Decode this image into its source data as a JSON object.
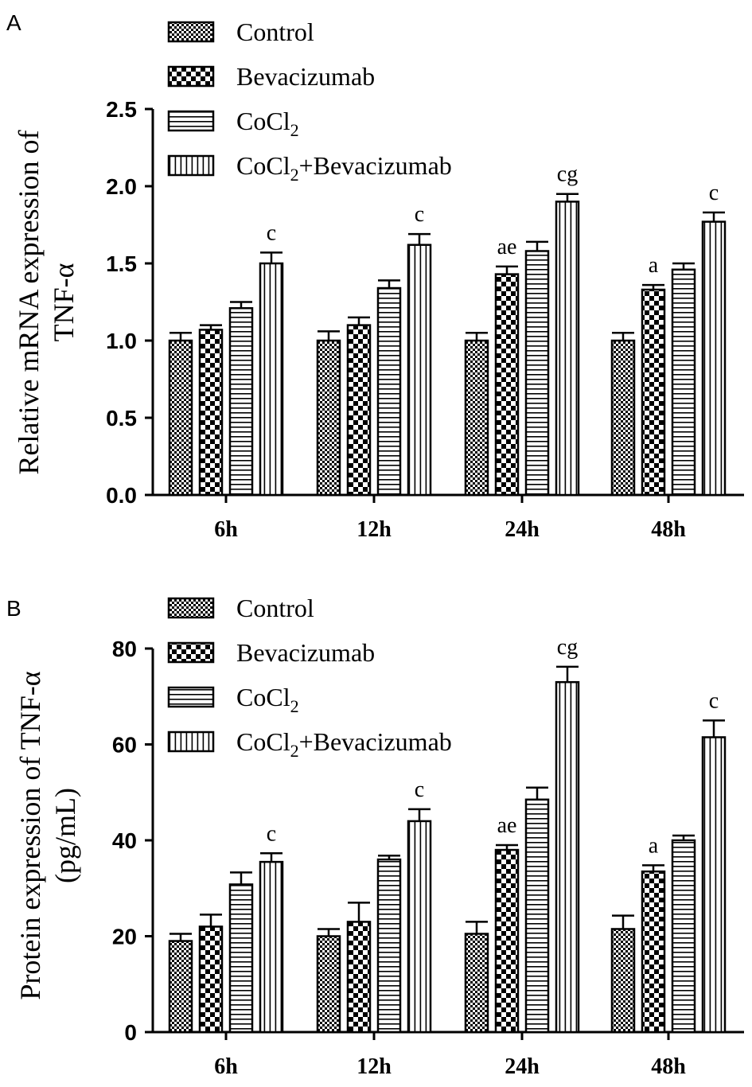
{
  "colors": {
    "ink": "#000000",
    "background": "#ffffff"
  },
  "chart_data": [
    {
      "type": "bar",
      "panel_label": "A",
      "title": "",
      "xlabel": "",
      "ylabel_line1": "Relative mRNA expression of",
      "ylabel_line2": "TNF-α",
      "categories": [
        "6h",
        "12h",
        "24h",
        "48h"
      ],
      "ylim": [
        0,
        2.5
      ],
      "yticks": [
        "0.0",
        "0.5",
        "1.0",
        "1.5",
        "2.0",
        "2.5"
      ],
      "grid": false,
      "legend_position": "top-left",
      "series": [
        {
          "name": "Control",
          "sub": "",
          "tail": "",
          "pattern": "fine-check",
          "values": [
            1.0,
            1.0,
            1.0,
            1.0
          ],
          "errors": [
            0.05,
            0.06,
            0.05,
            0.05
          ],
          "annotations": [
            "",
            "",
            "",
            ""
          ]
        },
        {
          "name": "Bevacizumab",
          "sub": "",
          "tail": "",
          "pattern": "check",
          "values": [
            1.07,
            1.1,
            1.43,
            1.33
          ],
          "errors": [
            0.03,
            0.05,
            0.05,
            0.03
          ],
          "annotations": [
            "",
            "",
            "ae",
            "a"
          ]
        },
        {
          "name": "CoCl",
          "sub": "2",
          "tail": "",
          "pattern": "horizontal",
          "values": [
            1.21,
            1.34,
            1.58,
            1.46
          ],
          "errors": [
            0.04,
            0.05,
            0.06,
            0.04
          ],
          "annotations": [
            "",
            "",
            "",
            ""
          ]
        },
        {
          "name": "CoCl",
          "sub": "2",
          "tail": "+Bevacizumab",
          "pattern": "vertical",
          "values": [
            1.5,
            1.62,
            1.9,
            1.77
          ],
          "errors": [
            0.07,
            0.07,
            0.05,
            0.06
          ],
          "annotations": [
            "c",
            "c",
            "cg",
            "c"
          ]
        }
      ]
    },
    {
      "type": "bar",
      "panel_label": "B",
      "title": "",
      "xlabel": "",
      "ylabel_line1": "Protein expression of TNF-α",
      "ylabel_line2": "(pg/mL)",
      "categories": [
        "6h",
        "12h",
        "24h",
        "48h"
      ],
      "ylim": [
        0,
        80
      ],
      "yticks": [
        "0",
        "20",
        "40",
        "60",
        "80"
      ],
      "grid": false,
      "legend_position": "top-left",
      "series": [
        {
          "name": "Control",
          "sub": "",
          "tail": "",
          "pattern": "fine-check",
          "values": [
            19,
            20,
            20.5,
            21.5
          ],
          "errors": [
            1.5,
            1.5,
            2.5,
            2.8
          ],
          "annotations": [
            "",
            "",
            "",
            ""
          ]
        },
        {
          "name": "Bevacizumab",
          "sub": "",
          "tail": "",
          "pattern": "check",
          "values": [
            22,
            23,
            38,
            33.5
          ],
          "errors": [
            2.5,
            4.0,
            1.0,
            1.3
          ],
          "annotations": [
            "",
            "",
            "ae",
            "a"
          ]
        },
        {
          "name": "CoCl",
          "sub": "2",
          "tail": "",
          "pattern": "horizontal",
          "values": [
            30.8,
            36,
            48.5,
            40
          ],
          "errors": [
            2.5,
            0.8,
            2.5,
            1.0
          ],
          "annotations": [
            "",
            "",
            "",
            ""
          ]
        },
        {
          "name": "CoCl",
          "sub": "2",
          "tail": "+Bevacizumab",
          "pattern": "vertical",
          "values": [
            35.5,
            44,
            73,
            61.5
          ],
          "errors": [
            1.8,
            2.5,
            3.2,
            3.5
          ],
          "annotations": [
            "c",
            "c",
            "cg",
            "c"
          ]
        }
      ]
    }
  ]
}
